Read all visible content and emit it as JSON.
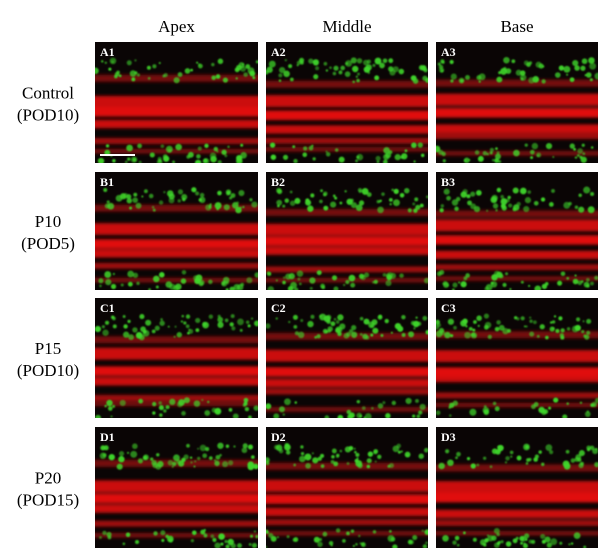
{
  "columns": [
    "Apex",
    "Middle",
    "Base"
  ],
  "rows": [
    {
      "label": [
        "Control",
        "(POD10)"
      ],
      "panels": [
        "A1",
        "A2",
        "A3"
      ]
    },
    {
      "label": [
        "P10",
        "(POD5)"
      ],
      "panels": [
        "B1",
        "B2",
        "B3"
      ]
    },
    {
      "label": [
        "P15",
        "(POD10)"
      ],
      "panels": [
        "C1",
        "C2",
        "C3"
      ]
    },
    {
      "label": [
        "P20",
        "(POD15)"
      ],
      "panels": [
        "D1",
        "D2",
        "D3"
      ]
    }
  ]
}
